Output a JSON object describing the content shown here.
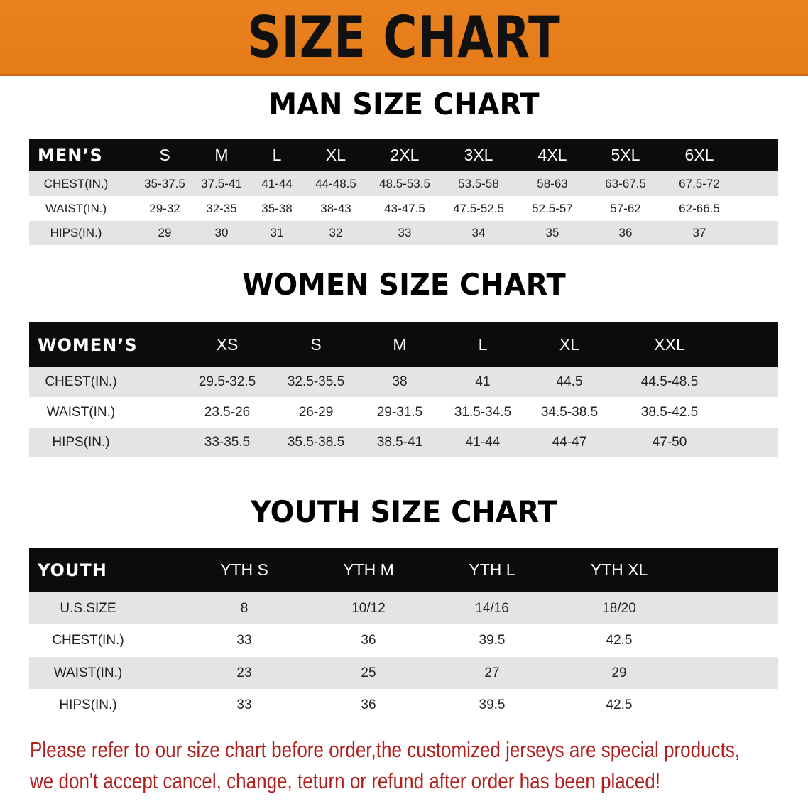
{
  "title": "SIZE CHART",
  "men": {
    "title": "MAN SIZE CHART",
    "headers": [
      "MEN’S",
      "S",
      "M",
      "L",
      "XL",
      "2XL",
      "3XL",
      "4XL",
      "5XL",
      "6XL"
    ],
    "rows": [
      [
        "CHEST(IN.)",
        "35-37.5",
        "37.5-41",
        "41-44",
        "44-48.5",
        "48.5-53.5",
        "53.5-58",
        "58-63",
        "63-67.5",
        "67.5-72"
      ],
      [
        "WAIST(IN.)",
        "29-32",
        "32-35",
        "35-38",
        "38-43",
        "43-47.5",
        "47.5-52.5",
        "52.5-57",
        "57-62",
        "62-66.5"
      ],
      [
        "HIPS(IN.)",
        "29",
        "30",
        "31",
        "32",
        "33",
        "34",
        "35",
        "36",
        "37"
      ]
    ]
  },
  "women": {
    "title": "WOMEN SIZE CHART",
    "headers": [
      "WOMEN’S",
      "XS",
      "S",
      "M",
      "L",
      "XL",
      "XXL"
    ],
    "rows": [
      [
        "CHEST(IN.)",
        "29.5-32.5",
        "32.5-35.5",
        "38",
        "41",
        "44.5",
        "44.5-48.5"
      ],
      [
        "WAIST(IN.)",
        "23.5-26",
        "26-29",
        "29-31.5",
        "31.5-34.5",
        "34.5-38.5",
        "38.5-42.5"
      ],
      [
        "HIPS(IN.)",
        "33-35.5",
        "35.5-38.5",
        "38.5-41",
        "41-44",
        "44-47",
        "47-50"
      ]
    ]
  },
  "youth": {
    "title": "YOUTH SIZE CHART",
    "headers": [
      "YOUTH",
      "YTH S",
      "YTH M",
      "YTH L",
      "YTH XL"
    ],
    "rows": [
      [
        "U.S.SIZE",
        "8",
        "10/12",
        "14/16",
        "18/20"
      ],
      [
        "CHEST(IN.)",
        "33",
        "36",
        "39.5",
        "42.5"
      ],
      [
        "WAIST(IN.)",
        "23",
        "25",
        "27",
        "29"
      ],
      [
        "HIPS(IN.)",
        "33",
        "36",
        "39.5",
        "42.5"
      ]
    ]
  },
  "notice": {
    "line1": "Please refer to our size chart before order,the customized jerseys are special products,",
    "line2": "we don't accept cancel, change, teturn or refund after order has been placed!"
  },
  "colors": {
    "banner": "#e8801e",
    "header_row": "#0c0c0c",
    "alt_row": "#e4e4e6",
    "notice": "#b0201e"
  }
}
